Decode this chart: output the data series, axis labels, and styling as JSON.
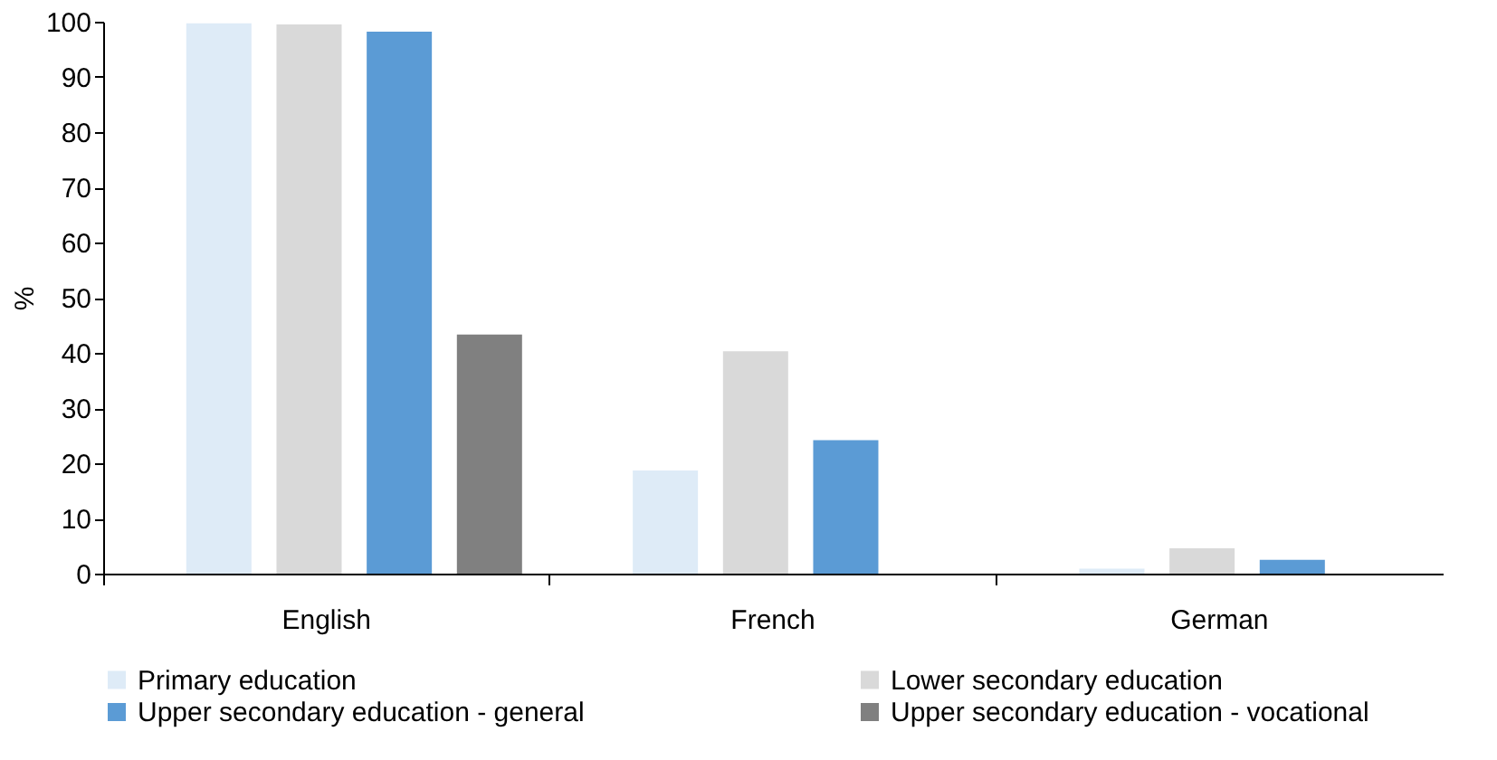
{
  "chart_data": {
    "type": "bar",
    "ylabel": "%",
    "categories": [
      "English",
      "French",
      "German"
    ],
    "series": [
      {
        "name": "Primary education",
        "color": "#deebf7",
        "values": [
          99.7,
          18.7,
          0.9
        ]
      },
      {
        "name": "Lower secondary education",
        "color": "#d9d9d9",
        "values": [
          99.5,
          40.3,
          4.6
        ]
      },
      {
        "name": "Upper secondary education - general",
        "color": "#5b9bd5",
        "values": [
          98.2,
          24.2,
          2.5
        ]
      },
      {
        "name": "Upper secondary education - vocational",
        "color": "#808080",
        "values": [
          43.3,
          null,
          null
        ]
      }
    ],
    "ylim": [
      0,
      100
    ],
    "yticks": [
      0,
      10,
      20,
      30,
      40,
      50,
      60,
      70,
      80,
      90,
      100
    ],
    "grid": false,
    "legend": "bottom"
  }
}
